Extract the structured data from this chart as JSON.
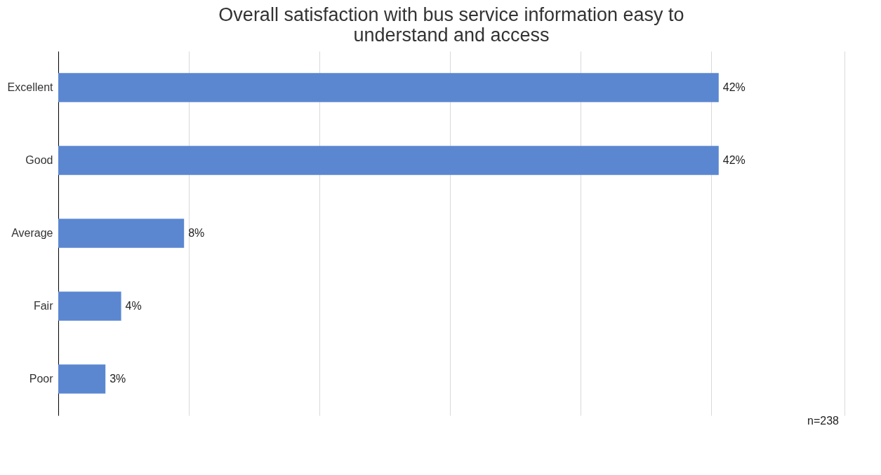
{
  "chart_data": {
    "type": "bar",
    "orientation": "horizontal",
    "title": "Overall satisfaction with bus service information easy to understand and access",
    "categories": [
      "Excellent",
      "Good",
      "Average",
      "Fair",
      "Poor"
    ],
    "values": [
      42,
      42,
      8,
      4,
      3
    ],
    "value_labels": [
      "42%",
      "42%",
      "8%",
      "4%",
      "3%"
    ],
    "color": "#5b87d1",
    "xlim": [
      0,
      50
    ],
    "xticks": [
      {
        "value": 8.3,
        "label": null
      },
      {
        "value": 16.6,
        "label": null
      },
      {
        "value": 24.9,
        "label": null
      },
      {
        "value": 33.2,
        "label": null
      },
      {
        "value": 41.5,
        "label": null
      },
      {
        "value": 50,
        "label": null
      }
    ],
    "tick_labels": "y",
    "grid": "x",
    "annotations": [
      "n=238"
    ]
  }
}
